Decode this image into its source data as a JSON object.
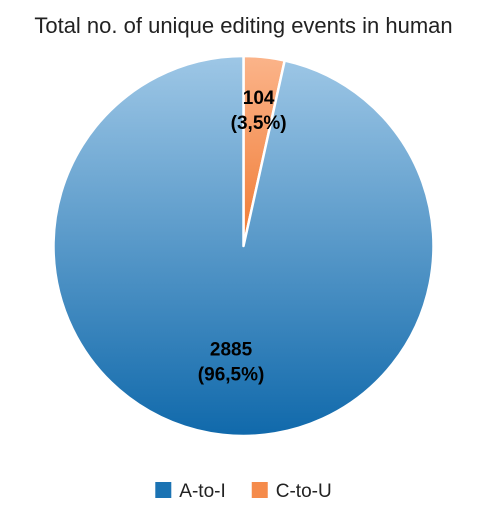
{
  "chart_data": {
    "type": "pie",
    "title": "Total no. of unique editing events in human",
    "start_angle": 0,
    "direction": "clockwise",
    "legend_position": "bottom",
    "slices": [
      {
        "label": "C-to-U",
        "value": 104,
        "value_label": "104",
        "percent_label": "(3,5%)",
        "color": "#f58b4b",
        "gradient_light": "#fbb48a",
        "gradient_dark": "#f07a33"
      },
      {
        "label": "A-to-I",
        "value": 2885,
        "value_label": "2885",
        "percent_label": "(96,5%)",
        "color": "#1b73b3",
        "gradient_light": "#9ec7e6",
        "gradient_dark": "#1069ab"
      }
    ],
    "legend": [
      {
        "label": "A-to-I",
        "color": "#1b73b3"
      },
      {
        "label": "C-to-U",
        "color": "#f58b4b"
      }
    ]
  }
}
